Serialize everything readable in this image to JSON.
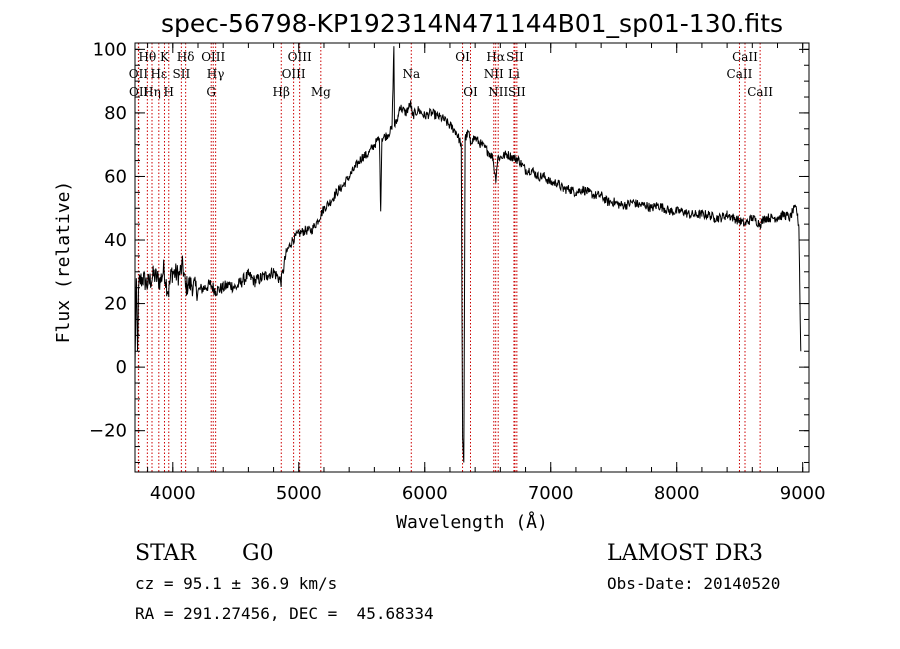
{
  "chart_data": {
    "type": "line",
    "title": "spec-56798-KP192314N471144B01_sp01-130.fits",
    "xlabel": "Wavelength (Å)",
    "ylabel": "Flux (relative)",
    "xlim": [
      3700,
      9050
    ],
    "ylim": [
      -33,
      102
    ],
    "xticks": [
      4000,
      5000,
      6000,
      7000,
      8000,
      9000
    ],
    "yticks": [
      -20,
      0,
      20,
      40,
      60,
      80,
      100
    ],
    "series": [
      {
        "name": "spectrum",
        "x": [
          3700,
          3710,
          3720,
          3730,
          3740,
          3760,
          3800,
          3850,
          3900,
          3930,
          3950,
          3968,
          3990,
          4050,
          4080,
          4101,
          4120,
          4150,
          4200,
          4250,
          4300,
          4340,
          4400,
          4450,
          4500,
          4550,
          4600,
          4650,
          4700,
          4750,
          4800,
          4861,
          4900,
          4950,
          5000,
          5050,
          5100,
          5150,
          5200,
          5250,
          5300,
          5350,
          5400,
          5450,
          5500,
          5550,
          5600,
          5640,
          5650,
          5660,
          5700,
          5740,
          5755,
          5760,
          5775,
          5790,
          5800,
          5850,
          5890,
          5900,
          5950,
          6000,
          6050,
          6100,
          6150,
          6200,
          6250,
          6290,
          6300,
          6310,
          6320,
          6350,
          6363,
          6380,
          6400,
          6450,
          6500,
          6540,
          6563,
          6580,
          6600,
          6650,
          6700,
          6750,
          6800,
          6850,
          6900,
          6950,
          7000,
          7050,
          7100,
          7150,
          7200,
          7250,
          7300,
          7350,
          7400,
          7450,
          7500,
          7550,
          7600,
          7650,
          7700,
          7750,
          7800,
          7850,
          7900,
          7950,
          8000,
          8050,
          8100,
          8150,
          8200,
          8250,
          8300,
          8350,
          8400,
          8450,
          8500,
          8542,
          8600,
          8662,
          8700,
          8750,
          8800,
          8850,
          8900,
          8920,
          8950,
          8960,
          8970,
          8975,
          8980,
          8985
        ],
        "values": [
          0,
          28,
          5,
          26,
          27,
          28,
          26,
          29,
          27,
          31,
          26,
          24,
          30,
          29,
          32,
          25,
          26,
          26,
          24,
          25,
          26,
          24,
          25,
          26,
          25,
          27,
          29,
          27,
          28,
          29,
          30,
          27,
          36,
          40,
          42,
          43,
          43,
          46,
          50,
          52,
          55,
          57,
          60,
          63,
          66,
          67,
          70,
          72,
          49,
          72,
          73,
          75,
          101,
          76,
          77,
          79,
          82,
          80,
          83,
          79,
          81,
          79,
          80,
          79,
          78,
          76,
          74,
          70,
          -22,
          -30,
          72,
          74,
          70,
          72,
          72,
          70,
          68,
          66,
          59,
          66,
          66,
          67,
          66,
          65,
          62,
          62,
          60,
          60,
          58,
          58,
          56,
          56,
          55,
          56,
          55,
          54,
          54,
          52,
          52,
          51,
          51,
          52,
          51,
          51,
          50,
          51,
          50,
          49,
          49,
          49,
          48,
          48,
          48,
          48,
          47,
          47,
          48,
          47,
          46,
          45,
          47,
          45,
          47,
          47,
          47,
          48,
          47,
          49,
          50,
          47,
          44,
          30,
          15,
          5
        ]
      }
    ],
    "spectral_lines": [
      {
        "label": "Hθ",
        "wavelength": 3798,
        "row": 1
      },
      {
        "label": "OII",
        "wavelength": 3727,
        "row": 2
      },
      {
        "label": "OII",
        "wavelength": 3729,
        "row": 3
      },
      {
        "label": "Hη",
        "wavelength": 3835,
        "row": 3
      },
      {
        "label": "Hε",
        "wavelength": 3889,
        "row": 2
      },
      {
        "label": "K",
        "wavelength": 3934,
        "row": 1
      },
      {
        "label": "H",
        "wavelength": 3968,
        "row": 3
      },
      {
        "label": "SII",
        "wavelength": 4068,
        "row": 2
      },
      {
        "label": "Hδ",
        "wavelength": 4102,
        "row": 1
      },
      {
        "label": "OIII",
        "wavelength": 4321,
        "row": 1
      },
      {
        "label": "Hγ",
        "wavelength": 4340,
        "row": 2
      },
      {
        "label": "G",
        "wavelength": 4305,
        "row": 3
      },
      {
        "label": "Hβ",
        "wavelength": 4861,
        "row": 3
      },
      {
        "label": "OIII",
        "wavelength": 4959,
        "row": 2
      },
      {
        "label": "OIII",
        "wavelength": 5007,
        "row": 1
      },
      {
        "label": "Mg",
        "wavelength": 5175,
        "row": 3
      },
      {
        "label": "Na",
        "wavelength": 5893,
        "row": 2
      },
      {
        "label": "OI",
        "wavelength": 6300,
        "row": 1
      },
      {
        "label": "OI",
        "wavelength": 6363,
        "row": 3
      },
      {
        "label": "Hα",
        "wavelength": 6563,
        "row": 1
      },
      {
        "label": "NII",
        "wavelength": 6548,
        "row": 2
      },
      {
        "label": "NII",
        "wavelength": 6583,
        "row": 3
      },
      {
        "label": "SII",
        "wavelength": 6716,
        "row": 1
      },
      {
        "label": "Li",
        "wavelength": 6708,
        "row": 2
      },
      {
        "label": "SII",
        "wavelength": 6731,
        "row": 3
      },
      {
        "label": "CaII",
        "wavelength": 8542,
        "row": 1
      },
      {
        "label": "CaII",
        "wavelength": 8498,
        "row": 2
      },
      {
        "label": "CaII",
        "wavelength": 8662,
        "row": 3
      }
    ]
  },
  "info": {
    "object_class": "STAR",
    "subclass": "G0",
    "survey": "LAMOST DR3",
    "redshift_line": "cz = 95.1 ± 36.9 km/s",
    "obs_date_line": "Obs-Date: 20140520",
    "coords_line": "RA = 291.27456, DEC =  45.68334"
  },
  "colors": {
    "line_marker": "#cc0000",
    "spectrum": "#000000"
  }
}
